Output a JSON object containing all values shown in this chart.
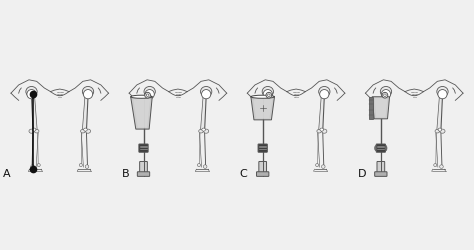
{
  "background_color": "#f0f0f0",
  "panel_labels": [
    "A",
    "B",
    "C",
    "D"
  ],
  "panel_label_fontsize": 8,
  "panel_label_color": "#111111",
  "line_color": "#555555",
  "bone_fill": "#e8e8e8",
  "bone_edge": "#555555",
  "socket_fill": "#c8c8c8",
  "socket_edge": "#444444",
  "socket_fill_light": "#d8d8d8",
  "prosthetic_dark": "#404040",
  "prosthetic_mid": "#707070",
  "prosthetic_light": "#b0b0b0",
  "prosthetic_very_light": "#d0d0d0",
  "dot_color": "#111111",
  "figsize": [
    4.74,
    2.5
  ],
  "dpi": 100,
  "xlim": [
    -1.15,
    1.15
  ],
  "ylim": [
    -1.08,
    1.08
  ]
}
